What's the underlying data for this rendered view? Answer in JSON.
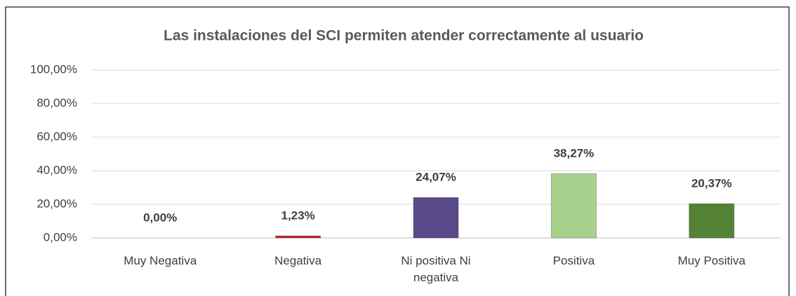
{
  "chart_data": {
    "type": "bar",
    "title": "Las instalaciones del SCI permiten atender correctamente al usuario",
    "categories": [
      "Muy Negativa",
      "Negativa",
      "Ni positiva Ni negativa",
      "Positiva",
      "Muy Positiva"
    ],
    "values": [
      0,
      1.23,
      24.07,
      38.27,
      20.37
    ],
    "value_labels": [
      "0,00%",
      "1,23%",
      "24,07%",
      "38,27%",
      "20,37%"
    ],
    "colors": [
      "#7f7f7f",
      "#c0282d",
      "#5b4a8a",
      "#a9d18e",
      "#548235"
    ],
    "ylim": [
      0,
      100
    ],
    "yticks": [
      {
        "value": 0,
        "label": "0,00%"
      },
      {
        "value": 20,
        "label": "20,00%"
      },
      {
        "value": 40,
        "label": "40,00%"
      },
      {
        "value": 60,
        "label": "60,00%"
      },
      {
        "value": 80,
        "label": "80,00%"
      },
      {
        "value": 100,
        "label": "100,00%"
      }
    ],
    "grid": true
  }
}
